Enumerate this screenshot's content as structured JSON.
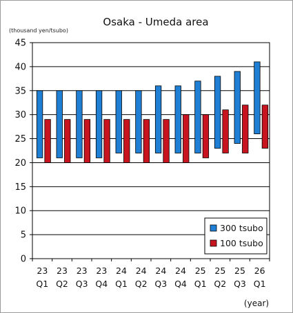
{
  "chart_data": {
    "type": "bar",
    "title": "Osaka - Umeda area",
    "ylabel": "(thousand yen/tsubo)",
    "xlabel": "(year)",
    "ylim": [
      0,
      45
    ],
    "yticks": [
      "0",
      "5",
      "10",
      "15",
      "20",
      "25",
      "30",
      "35",
      "40",
      "45"
    ],
    "grid": "horizontal",
    "legend_position": "bottom-right",
    "categories": [
      {
        "year": "23",
        "quarter": "Q1"
      },
      {
        "year": "23",
        "quarter": "Q2"
      },
      {
        "year": "23",
        "quarter": "Q3"
      },
      {
        "year": "23",
        "quarter": "Q4"
      },
      {
        "year": "24",
        "quarter": "Q1"
      },
      {
        "year": "24",
        "quarter": "Q2"
      },
      {
        "year": "24",
        "quarter": "Q3"
      },
      {
        "year": "24",
        "quarter": "Q4"
      },
      {
        "year": "25",
        "quarter": "Q1"
      },
      {
        "year": "25",
        "quarter": "Q2"
      },
      {
        "year": "25",
        "quarter": "Q3"
      },
      {
        "year": "26",
        "quarter": "Q1"
      }
    ],
    "series": [
      {
        "name": "300 tsubo",
        "color": "#1f7fd4",
        "low": [
          21,
          21,
          21,
          21,
          22,
          22,
          22,
          22,
          22,
          23,
          24,
          26
        ],
        "high": [
          35,
          35,
          35,
          35,
          35,
          35,
          36,
          36,
          37,
          38,
          39,
          41
        ]
      },
      {
        "name": "100 tsubo",
        "color": "#c8141e",
        "low": [
          20,
          20,
          20,
          20,
          20,
          20,
          20,
          20,
          21,
          22,
          22,
          23
        ],
        "high": [
          29,
          29,
          29,
          29,
          29,
          29,
          29,
          30,
          30,
          31,
          32,
          32
        ]
      }
    ]
  }
}
